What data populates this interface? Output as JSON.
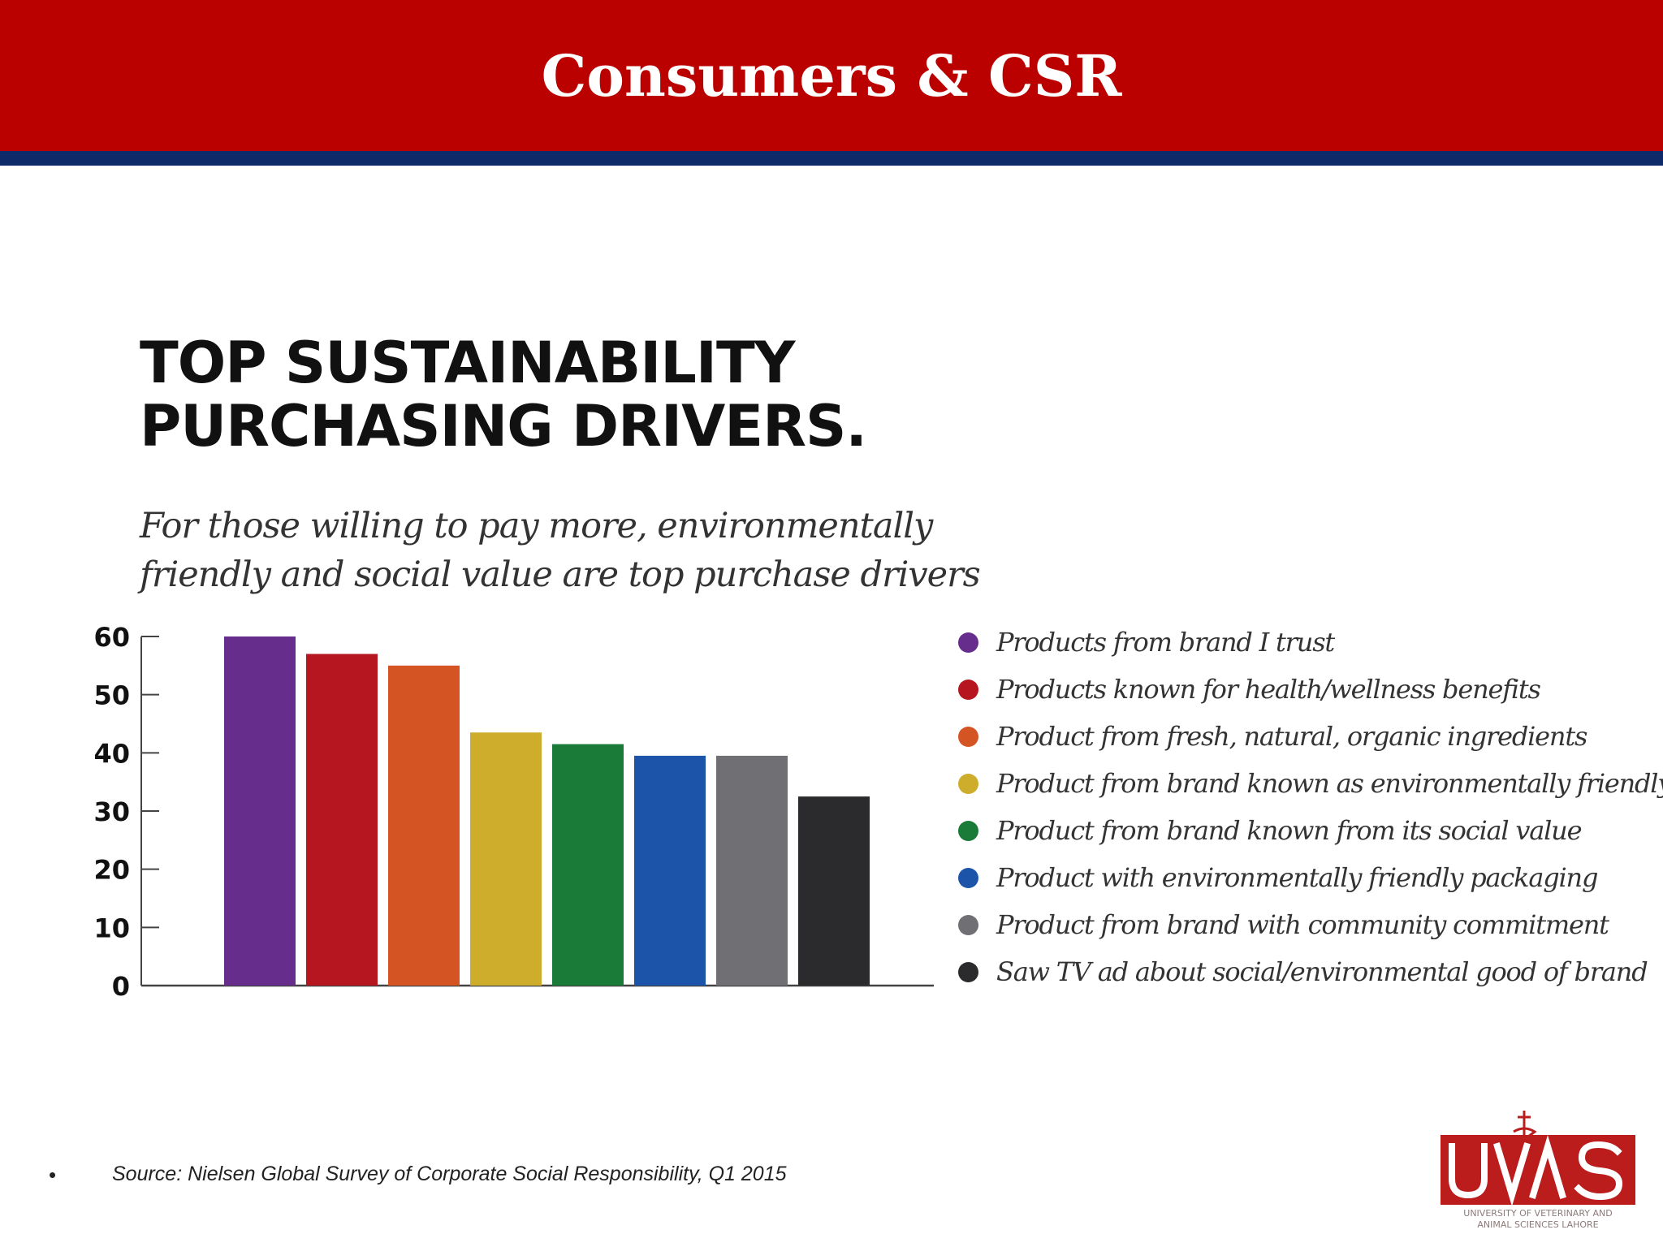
{
  "slide": {
    "title": "Consumers & CSR",
    "header_color": "#bb0000",
    "stripe_color": "#0e2a68"
  },
  "chart_data": {
    "type": "bar",
    "title_lines": [
      "TOP SUSTAINABILITY",
      "PURCHASING DRIVERS."
    ],
    "subtitle_lines": [
      "For those willing to pay more, environmentally",
      "friendly and social value are top purchase drivers"
    ],
    "xlabel": "",
    "ylabel": "",
    "ylim": [
      0,
      60
    ],
    "yticks": [
      0,
      10,
      20,
      30,
      40,
      50,
      60
    ],
    "grid": false,
    "legend_position": "right",
    "categories": [
      "Products from brand I trust",
      "Products known for health/wellness benefits",
      "Product from fresh, natural, organic ingredients",
      "Product from brand known as environmentally friendly",
      "Product from brand known from its social value",
      "Product with environmentally friendly packaging",
      "Product from brand with community commitment",
      "Saw TV ad about social/environmental good of brand"
    ],
    "values": [
      60,
      57,
      55,
      43.5,
      41.5,
      39.5,
      39.5,
      32.5
    ],
    "colors": [
      "#662d8c",
      "#b5161f",
      "#d55424",
      "#cfad2c",
      "#1a7b38",
      "#1c54a9",
      "#707074",
      "#2b2b2d"
    ]
  },
  "footer": {
    "bullet": "•",
    "source": "Source: Nielsen Global Survey of Corporate Social Responsibility, Q1 2015"
  },
  "logo": {
    "text": "UVAS",
    "line1": "UNIVERSITY OF VETERINARY AND",
    "line2": "ANIMAL SCIENCES LAHORE",
    "color": "#bb1d1d",
    "icon": "caduceus-icon"
  }
}
